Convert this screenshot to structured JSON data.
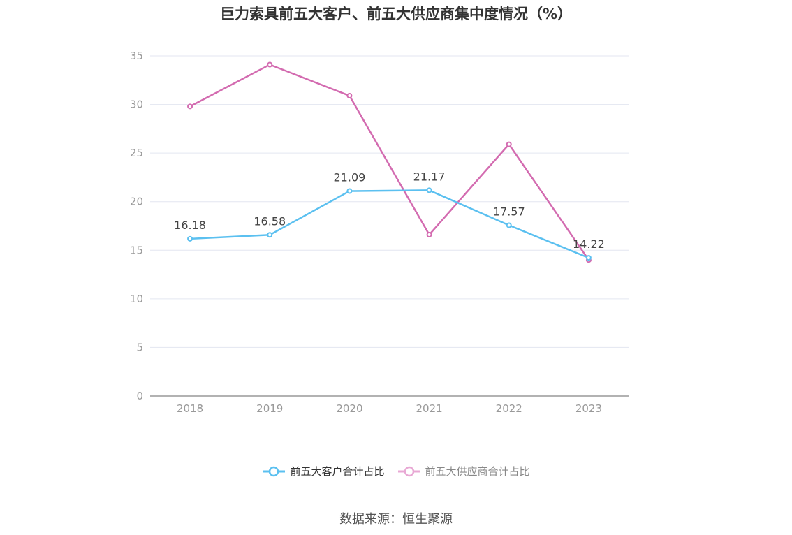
{
  "title": "巨力索具前五大客户、前五大供应商集中度情况（%）",
  "source": "数据来源：恒生聚源",
  "chart_data": {
    "type": "line",
    "categories": [
      "2018",
      "2019",
      "2020",
      "2021",
      "2022",
      "2023"
    ],
    "ylim": [
      0,
      35
    ],
    "yticks": [
      0,
      5,
      10,
      15,
      20,
      25,
      30,
      35
    ],
    "grid": true,
    "legend_position": "bottom",
    "series": [
      {
        "name": "前五大客户合计占比",
        "values": [
          16.18,
          16.58,
          21.09,
          21.17,
          17.57,
          14.22
        ],
        "labels": [
          "16.18",
          "16.58",
          "21.09",
          "21.17",
          "17.57",
          "14.22"
        ],
        "color": "#5bc0f0",
        "legend_text_color": "#333333"
      },
      {
        "name": "前五大供应商合计占比",
        "values": [
          29.8,
          34.1,
          30.9,
          16.6,
          25.9,
          14.0
        ],
        "labels": [],
        "color": "#d36bb0",
        "legend_color": "#e8a8d4",
        "legend_text_color": "#888888"
      }
    ]
  }
}
